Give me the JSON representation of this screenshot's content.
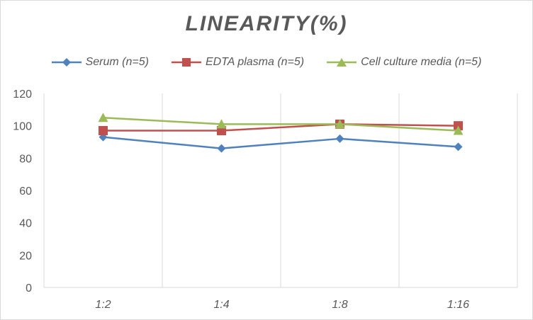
{
  "chart_data": {
    "type": "line",
    "title": "LINEARITY(%)",
    "xlabel": "",
    "ylabel": "",
    "categories": [
      "1:2",
      "1:4",
      "1:8",
      "1:16"
    ],
    "ylim": [
      0,
      120
    ],
    "yticks": [
      0,
      20,
      40,
      60,
      80,
      100,
      120
    ],
    "grid": "vertical",
    "legend_position": "top",
    "series": [
      {
        "name": "Serum (n=5)",
        "values": [
          93,
          86,
          92,
          87
        ],
        "color": "#4f81bd",
        "marker": "diamond"
      },
      {
        "name": "EDTA plasma (n=5)",
        "values": [
          97,
          97,
          101,
          100
        ],
        "color": "#c0504d",
        "marker": "square"
      },
      {
        "name": "Cell culture media (n=5)",
        "values": [
          105,
          101,
          101,
          97
        ],
        "color": "#9bbb59",
        "marker": "triangle"
      }
    ]
  }
}
